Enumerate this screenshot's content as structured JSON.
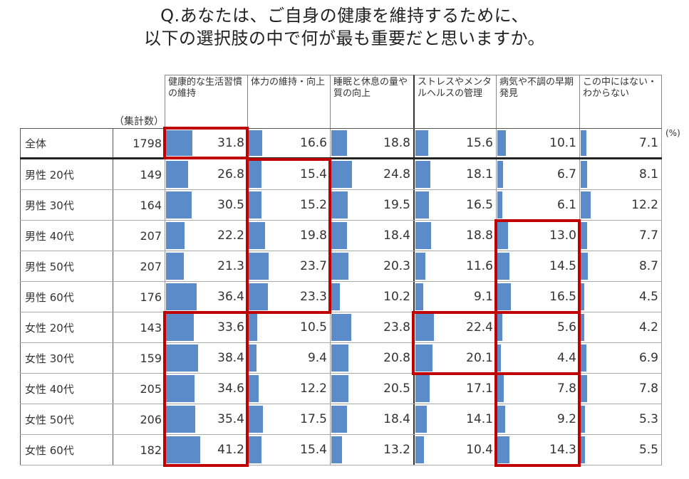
{
  "title": {
    "line1": "Q.あなたは、ご自身の健康を維持するために、",
    "line2": "以下の選択肢の中で何が最も重要だと思いますか。"
  },
  "count_label": "（集計数）",
  "unit_label": "(%)",
  "columns": [
    "健康的な生活習慣の維持",
    "体力の維持・向上",
    "睡眠と休息の量や質の向上",
    "ストレスやメンタルヘルスの管理",
    "病気や不調の早期発見",
    "この中にはない・わからない"
  ],
  "rows": [
    {
      "label": "全体",
      "n": "1798",
      "values": [
        "31.8",
        "16.6",
        "18.8",
        "15.6",
        "10.1",
        "7.1"
      ]
    },
    {
      "label": "男性 20代",
      "n": "149",
      "values": [
        "26.8",
        "15.4",
        "24.8",
        "18.1",
        "6.7",
        "8.1"
      ]
    },
    {
      "label": "男性 30代",
      "n": "164",
      "values": [
        "30.5",
        "15.2",
        "19.5",
        "16.5",
        "6.1",
        "12.2"
      ]
    },
    {
      "label": "男性 40代",
      "n": "207",
      "values": [
        "22.2",
        "19.8",
        "18.4",
        "18.8",
        "13.0",
        "7.7"
      ]
    },
    {
      "label": "男性 50代",
      "n": "207",
      "values": [
        "21.3",
        "23.7",
        "20.3",
        "11.6",
        "14.5",
        "8.7"
      ]
    },
    {
      "label": "男性 60代",
      "n": "176",
      "values": [
        "36.4",
        "23.3",
        "10.2",
        "9.1",
        "16.5",
        "4.5"
      ]
    },
    {
      "label": "女性 20代",
      "n": "143",
      "values": [
        "33.6",
        "10.5",
        "23.8",
        "22.4",
        "5.6",
        "4.2"
      ]
    },
    {
      "label": "女性 30代",
      "n": "159",
      "values": [
        "38.4",
        "9.4",
        "20.8",
        "20.1",
        "4.4",
        "6.9"
      ]
    },
    {
      "label": "女性 40代",
      "n": "205",
      "values": [
        "34.6",
        "12.2",
        "20.5",
        "17.1",
        "7.8",
        "7.8"
      ]
    },
    {
      "label": "女性 50代",
      "n": "206",
      "values": [
        "35.4",
        "17.5",
        "18.4",
        "14.1",
        "9.2",
        "5.3"
      ]
    },
    {
      "label": "女性 60代",
      "n": "182",
      "values": [
        "41.2",
        "15.4",
        "13.2",
        "10.4",
        "14.3",
        "5.5"
      ]
    }
  ],
  "colors": {
    "bar": "#5b8bc9",
    "highlight": "#c00000"
  },
  "chart_data": {
    "type": "table",
    "title": "Q.あなたは、ご自身の健康を維持するために、以下の選択肢の中で何が最も重要だと思いますか。",
    "unit": "%",
    "columns": [
      "健康的な生活習慣の維持",
      "体力の維持・向上",
      "睡眠と休息の量や質の向上",
      "ストレスやメンタルヘルスの管理",
      "病気や不調の早期発見",
      "この中にはない・わからない"
    ],
    "categories": [
      "全体",
      "男性 20代",
      "男性 30代",
      "男性 40代",
      "男性 50代",
      "男性 60代",
      "女性 20代",
      "女性 30代",
      "女性 40代",
      "女性 50代",
      "女性 60代"
    ],
    "sample_sizes": [
      1798,
      149,
      164,
      207,
      207,
      176,
      143,
      159,
      205,
      206,
      182
    ],
    "series": [
      {
        "name": "健康的な生活習慣の維持",
        "values": [
          31.8,
          26.8,
          30.5,
          22.2,
          21.3,
          36.4,
          33.6,
          38.4,
          34.6,
          35.4,
          41.2
        ]
      },
      {
        "name": "体力の維持・向上",
        "values": [
          16.6,
          15.4,
          15.2,
          19.8,
          23.7,
          23.3,
          10.5,
          9.4,
          12.2,
          17.5,
          15.4
        ]
      },
      {
        "name": "睡眠と休息の量や質の向上",
        "values": [
          18.8,
          24.8,
          19.5,
          18.4,
          20.3,
          10.2,
          23.8,
          20.8,
          20.5,
          18.4,
          13.2
        ]
      },
      {
        "name": "ストレスやメンタルヘルスの管理",
        "values": [
          15.6,
          18.1,
          16.5,
          18.8,
          11.6,
          9.1,
          22.4,
          20.1,
          17.1,
          14.1,
          10.4
        ]
      },
      {
        "name": "病気や不調の早期発見",
        "values": [
          10.1,
          6.7,
          6.1,
          13.0,
          14.5,
          16.5,
          5.6,
          4.4,
          7.8,
          9.2,
          14.3
        ]
      },
      {
        "name": "この中にはない・わからない",
        "values": [
          7.1,
          8.1,
          12.2,
          7.7,
          8.7,
          4.5,
          4.2,
          6.9,
          7.8,
          5.3,
          5.5
        ]
      }
    ],
    "highlights": [
      {
        "column": 0,
        "rows": [
          0
        ]
      },
      {
        "column": 1,
        "rows": [
          1,
          2,
          3,
          4,
          5
        ]
      },
      {
        "column": 0,
        "rows": [
          6,
          7,
          8,
          9,
          10
        ]
      },
      {
        "column": 4,
        "rows": [
          3,
          4,
          5
        ]
      },
      {
        "column": 3,
        "rows": [
          6,
          7
        ]
      },
      {
        "column": 4,
        "rows": [
          6,
          7
        ]
      },
      {
        "column": 4,
        "rows": [
          8,
          9,
          10
        ]
      }
    ]
  }
}
